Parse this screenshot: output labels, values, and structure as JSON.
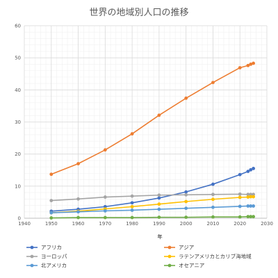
{
  "chart_data": {
    "type": "scatter",
    "title": "世界の地域別人口の推移",
    "xlabel": "年",
    "ylabel": "",
    "xlim": [
      1940,
      2030
    ],
    "ylim": [
      0,
      60
    ],
    "x_ticks": [
      1940,
      1950,
      1960,
      1970,
      1980,
      1990,
      2000,
      2010,
      2020,
      2030
    ],
    "y_ticks": [
      0,
      10,
      20,
      30,
      40,
      50,
      60
    ],
    "grid": true,
    "legend_position": "bottom",
    "series": [
      {
        "name": "アフリカ",
        "color": "#4472C4",
        "x": [
          1950,
          1960,
          1970,
          1980,
          1990,
          2000,
          2010,
          2020,
          2023,
          2024,
          2025
        ],
        "y": [
          2.2,
          2.8,
          3.6,
          4.8,
          6.3,
          8.2,
          10.6,
          13.6,
          14.6,
          15.1,
          15.5
        ]
      },
      {
        "name": "アジア",
        "color": "#ED7D31",
        "x": [
          1950,
          1960,
          1970,
          1980,
          1990,
          2000,
          2010,
          2020,
          2023,
          2024,
          2025
        ],
        "y": [
          13.7,
          17.0,
          21.3,
          26.3,
          32.1,
          37.4,
          42.3,
          46.9,
          47.6,
          48.0,
          48.3
        ]
      },
      {
        "name": "ヨーロッパ",
        "color": "#A5A5A5",
        "x": [
          1950,
          1960,
          1970,
          1980,
          1990,
          2000,
          2010,
          2020,
          2023,
          2024,
          2025
        ],
        "y": [
          5.5,
          6.0,
          6.6,
          6.9,
          7.2,
          7.3,
          7.4,
          7.5,
          7.4,
          7.4,
          7.4
        ]
      },
      {
        "name": "ラテンアメリカとカリブ海地域",
        "color": "#FFC000",
        "x": [
          1950,
          1960,
          1970,
          1980,
          1990,
          2000,
          2010,
          2020,
          2023,
          2024,
          2025
        ],
        "y": [
          1.7,
          2.2,
          2.9,
          3.6,
          4.4,
          5.2,
          5.9,
          6.5,
          6.6,
          6.7,
          6.7
        ]
      },
      {
        "name": "北アメリカ",
        "color": "#5B9BD5",
        "x": [
          1950,
          1960,
          1970,
          1980,
          1990,
          2000,
          2010,
          2020,
          2023,
          2024,
          2025
        ],
        "y": [
          1.7,
          2.0,
          2.3,
          2.5,
          2.8,
          3.1,
          3.4,
          3.7,
          3.8,
          3.8,
          3.8
        ]
      },
      {
        "name": "オセアニア",
        "color": "#70AD47",
        "x": [
          1950,
          1960,
          1970,
          1980,
          1990,
          2000,
          2010,
          2020,
          2023,
          2024,
          2025
        ],
        "y": [
          0.1,
          0.2,
          0.2,
          0.2,
          0.3,
          0.3,
          0.4,
          0.4,
          0.5,
          0.5,
          0.5
        ]
      }
    ]
  }
}
